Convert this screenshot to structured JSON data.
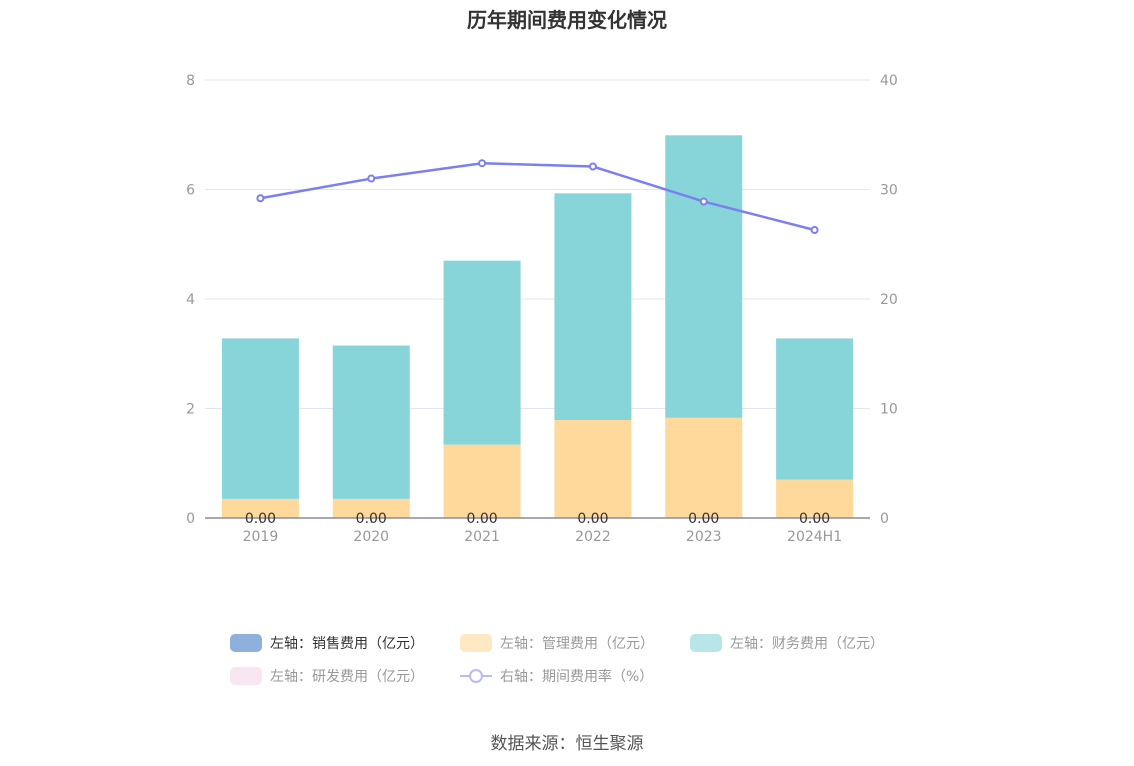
{
  "chart_data": {
    "type": "bar",
    "title": "历年期间费用变化情况",
    "categories": [
      "2019",
      "2020",
      "2021",
      "2022",
      "2023",
      "2024H1"
    ],
    "stacked": true,
    "left_axis": {
      "ylim": [
        0,
        8
      ],
      "ticks": [
        "0",
        "2",
        "4",
        "6",
        "8"
      ]
    },
    "right_axis": {
      "ylim": [
        0,
        40
      ],
      "ticks": [
        "0",
        "10",
        "20",
        "30",
        "40"
      ]
    },
    "grid": true,
    "legend_position": "bottom",
    "series": [
      {
        "name": "左轴：销售费用（亿元）",
        "type": "bar",
        "axis": "left",
        "color": "#8eb0dc",
        "values": [
          0,
          0,
          0,
          0,
          0,
          0
        ],
        "data_labels": [
          "0.00",
          "0.00",
          "0.00",
          "0.00",
          "0.00",
          "0.00"
        ]
      },
      {
        "name": "左轴：管理费用（亿元）",
        "type": "bar",
        "axis": "left",
        "color": "#ffd99c",
        "values": [
          0.35,
          0.35,
          1.34,
          1.79,
          1.83,
          0.7
        ]
      },
      {
        "name": "左轴：财务费用（亿元）",
        "type": "bar",
        "axis": "left",
        "color": "#88d5d9",
        "values": [
          2.93,
          2.8,
          3.36,
          4.14,
          5.16,
          2.58
        ]
      },
      {
        "name": "左轴：研发费用（亿元）",
        "type": "bar",
        "axis": "left",
        "color": "#f3d6ea",
        "values": [
          0,
          0,
          0,
          0,
          0,
          0
        ]
      },
      {
        "name": "右轴：期间费用率（%）",
        "type": "line",
        "axis": "right",
        "color": "#7b7ff0",
        "values": [
          29.2,
          31.0,
          32.4,
          32.1,
          28.9,
          26.3
        ]
      }
    ]
  },
  "source_note": "数据来源：恒生聚源"
}
